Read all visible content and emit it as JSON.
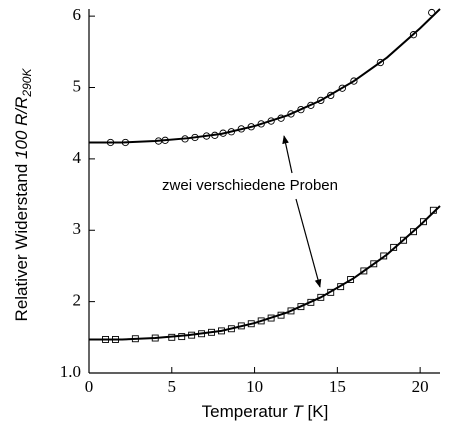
{
  "chart_data": {
    "type": "scatter",
    "x_label": {
      "text": "Temperatur",
      "symbol": "T",
      "unit": "[K]"
    },
    "y_label": {
      "text": "Relativer Widerstand",
      "quantity": "100 R/R",
      "subscript": "290K"
    },
    "annotation": "zwei verschiedene Proben",
    "xlim": [
      0,
      21.2
    ],
    "ylim": [
      1.0,
      6.1
    ],
    "xticks": [
      0,
      5,
      10,
      15,
      20
    ],
    "yticks": [
      {
        "value": 1,
        "label": "1.0"
      },
      2,
      3,
      4,
      5,
      6
    ],
    "series": [
      {
        "color": "#000000",
        "marker": "circle",
        "x": [
          1.3,
          2.2,
          4.2,
          4.6,
          5.8,
          6.4,
          7.1,
          7.6,
          8.1,
          8.6,
          9.2,
          9.8,
          10.4,
          11.0,
          11.6,
          12.2,
          12.8,
          13.4,
          14.0,
          14.6,
          15.3,
          16.0,
          17.6,
          19.6,
          20.7
        ],
        "values": [
          4.23,
          4.23,
          4.25,
          4.26,
          4.28,
          4.3,
          4.32,
          4.33,
          4.36,
          4.38,
          4.42,
          4.45,
          4.49,
          4.53,
          4.57,
          4.63,
          4.69,
          4.75,
          4.82,
          4.89,
          4.99,
          5.09,
          5.35,
          5.74,
          6.05
        ]
      },
      {
        "color": "#000000",
        "marker": "square",
        "x": [
          1.0,
          1.6,
          2.8,
          4.0,
          5.0,
          5.6,
          6.2,
          6.8,
          7.4,
          8.0,
          8.6,
          9.2,
          9.8,
          10.4,
          11.0,
          11.6,
          12.2,
          12.8,
          13.4,
          14.0,
          14.6,
          15.2,
          15.8,
          16.6,
          17.2,
          17.8,
          18.4,
          19.0,
          19.6,
          20.2,
          20.8
        ],
        "values": [
          1.47,
          1.47,
          1.48,
          1.49,
          1.5,
          1.51,
          1.53,
          1.55,
          1.57,
          1.59,
          1.62,
          1.66,
          1.69,
          1.73,
          1.77,
          1.81,
          1.87,
          1.93,
          1.99,
          2.06,
          2.13,
          2.21,
          2.31,
          2.43,
          2.53,
          2.64,
          2.76,
          2.86,
          2.98,
          3.12,
          3.28
        ]
      },
      {
        "color": "#000000",
        "marker": null,
        "x": [
          0,
          2,
          4,
          6,
          8,
          10,
          12,
          14,
          16,
          18,
          20,
          21.2
        ],
        "values": [
          4.23,
          4.23,
          4.25,
          4.29,
          4.35,
          4.46,
          4.61,
          4.82,
          5.09,
          5.42,
          5.83,
          6.1
        ]
      },
      {
        "color": "#000000",
        "marker": null,
        "x": [
          0,
          2,
          4,
          6,
          8,
          10,
          12,
          14,
          16,
          18,
          20,
          21.2
        ],
        "values": [
          1.47,
          1.47,
          1.49,
          1.53,
          1.59,
          1.7,
          1.85,
          2.06,
          2.33,
          2.66,
          3.07,
          3.34
        ]
      }
    ]
  }
}
